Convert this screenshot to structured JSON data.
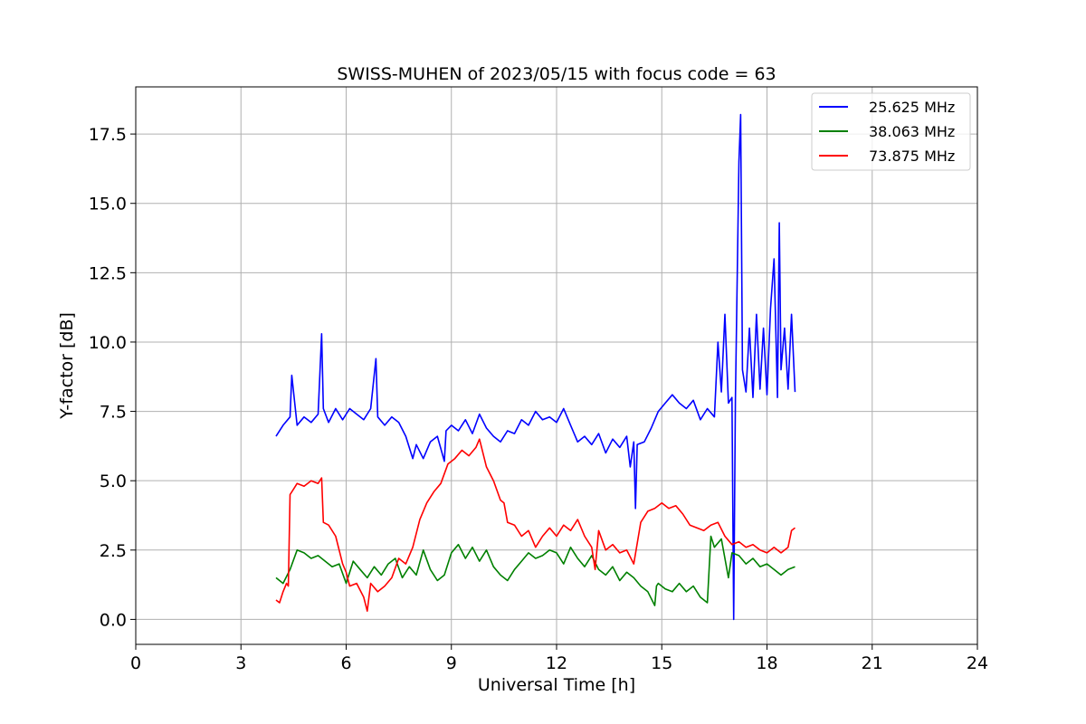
{
  "chart_data": {
    "type": "line",
    "title": "SWISS-MUHEN of 2023/05/15 with focus code = 63",
    "xlabel": "Universal Time [h]",
    "ylabel": "Y-factor [dB]",
    "xlim": [
      0,
      24
    ],
    "ylim": [
      -0.9,
      19.2
    ],
    "xticks": [
      0,
      3,
      6,
      9,
      12,
      15,
      18,
      21,
      24
    ],
    "xtick_labels": [
      "0",
      "3",
      "6",
      "9",
      "12",
      "15",
      "18",
      "21",
      "24"
    ],
    "yticks": [
      0.0,
      2.5,
      5.0,
      7.5,
      10.0,
      12.5,
      15.0,
      17.5
    ],
    "ytick_labels": [
      "0.0",
      "2.5",
      "5.0",
      "7.5",
      "10.0",
      "12.5",
      "15.0",
      "17.5"
    ],
    "grid": true,
    "legend_position": "top-right",
    "series": [
      {
        "name": "25.625 MHz",
        "color": "#0000ff",
        "x": [
          4.0,
          4.2,
          4.4,
          4.45,
          4.6,
          4.8,
          5.0,
          5.2,
          5.3,
          5.35,
          5.5,
          5.7,
          5.9,
          6.1,
          6.3,
          6.5,
          6.7,
          6.85,
          6.9,
          7.1,
          7.3,
          7.5,
          7.7,
          7.9,
          8.0,
          8.2,
          8.4,
          8.6,
          8.8,
          8.85,
          9.0,
          9.2,
          9.4,
          9.6,
          9.8,
          10.0,
          10.2,
          10.4,
          10.6,
          10.8,
          11.0,
          11.2,
          11.4,
          11.6,
          11.8,
          12.0,
          12.2,
          12.4,
          12.6,
          12.8,
          13.0,
          13.2,
          13.4,
          13.6,
          13.8,
          14.0,
          14.1,
          14.2,
          14.25,
          14.3,
          14.5,
          14.7,
          14.9,
          15.1,
          15.3,
          15.5,
          15.7,
          15.9,
          16.1,
          16.3,
          16.5,
          16.6,
          16.7,
          16.8,
          16.9,
          17.0,
          17.05,
          17.1,
          17.2,
          17.25,
          17.3,
          17.4,
          17.5,
          17.6,
          17.7,
          17.8,
          17.9,
          18.0,
          18.1,
          18.2,
          18.3,
          18.35,
          18.4,
          18.5,
          18.6,
          18.7,
          18.8
        ],
        "y": [
          6.6,
          7.0,
          7.3,
          8.8,
          7.0,
          7.3,
          7.1,
          7.4,
          10.3,
          7.6,
          7.1,
          7.6,
          7.2,
          7.6,
          7.4,
          7.2,
          7.6,
          9.4,
          7.3,
          7.0,
          7.3,
          7.1,
          6.6,
          5.8,
          6.3,
          5.8,
          6.4,
          6.6,
          5.7,
          6.8,
          7.0,
          6.8,
          7.2,
          6.7,
          7.4,
          6.9,
          6.6,
          6.4,
          6.8,
          6.7,
          7.2,
          7.0,
          7.5,
          7.2,
          7.3,
          7.1,
          7.6,
          7.0,
          6.4,
          6.6,
          6.3,
          6.7,
          6.0,
          6.5,
          6.2,
          6.6,
          5.5,
          6.4,
          4.0,
          6.3,
          6.4,
          6.9,
          7.5,
          7.8,
          8.1,
          7.8,
          7.6,
          7.9,
          7.2,
          7.6,
          7.3,
          10.0,
          8.2,
          11.0,
          7.8,
          8.0,
          0.0,
          7.9,
          16.5,
          18.2,
          9.0,
          8.2,
          10.5,
          8.0,
          11.0,
          8.3,
          10.5,
          8.1,
          11.2,
          13.0,
          8.0,
          14.3,
          9.0,
          10.5,
          8.3,
          11.0,
          8.2
        ]
      },
      {
        "name": "38.063 MHz",
        "color": "#008000",
        "x": [
          4.0,
          4.2,
          4.4,
          4.6,
          4.8,
          5.0,
          5.2,
          5.4,
          5.6,
          5.8,
          6.0,
          6.2,
          6.4,
          6.6,
          6.8,
          7.0,
          7.2,
          7.4,
          7.6,
          7.8,
          8.0,
          8.2,
          8.4,
          8.6,
          8.8,
          9.0,
          9.2,
          9.4,
          9.6,
          9.8,
          10.0,
          10.2,
          10.4,
          10.6,
          10.8,
          11.0,
          11.2,
          11.4,
          11.6,
          11.8,
          12.0,
          12.2,
          12.4,
          12.6,
          12.8,
          13.0,
          13.2,
          13.4,
          13.6,
          13.8,
          14.0,
          14.2,
          14.4,
          14.6,
          14.8,
          14.85,
          14.9,
          15.1,
          15.3,
          15.5,
          15.7,
          15.9,
          16.1,
          16.3,
          16.4,
          16.5,
          16.7,
          16.9,
          17.0,
          17.2,
          17.4,
          17.6,
          17.8,
          18.0,
          18.2,
          18.4,
          18.6,
          18.8
        ],
        "y": [
          1.5,
          1.3,
          1.8,
          2.5,
          2.4,
          2.2,
          2.3,
          2.1,
          1.9,
          2.0,
          1.3,
          2.1,
          1.8,
          1.5,
          1.9,
          1.6,
          2.0,
          2.2,
          1.5,
          1.9,
          1.6,
          2.5,
          1.8,
          1.4,
          1.6,
          2.4,
          2.7,
          2.2,
          2.6,
          2.1,
          2.5,
          1.9,
          1.6,
          1.4,
          1.8,
          2.1,
          2.4,
          2.2,
          2.3,
          2.5,
          2.4,
          2.0,
          2.6,
          2.2,
          1.9,
          2.3,
          1.8,
          1.6,
          1.9,
          1.4,
          1.7,
          1.5,
          1.2,
          1.0,
          0.5,
          1.2,
          1.3,
          1.1,
          1.0,
          1.3,
          1.0,
          1.2,
          0.8,
          0.6,
          3.0,
          2.6,
          2.9,
          1.5,
          2.4,
          2.3,
          2.0,
          2.2,
          1.9,
          2.0,
          1.8,
          1.6,
          1.8,
          1.9
        ]
      },
      {
        "name": "73.875 MHz",
        "color": "#ff0000",
        "x": [
          4.0,
          4.1,
          4.2,
          4.3,
          4.35,
          4.4,
          4.5,
          4.6,
          4.8,
          5.0,
          5.2,
          5.3,
          5.35,
          5.5,
          5.7,
          5.9,
          6.0,
          6.1,
          6.3,
          6.5,
          6.6,
          6.7,
          6.9,
          7.1,
          7.3,
          7.5,
          7.7,
          7.9,
          8.1,
          8.3,
          8.5,
          8.7,
          8.9,
          9.1,
          9.3,
          9.5,
          9.7,
          9.8,
          10.0,
          10.2,
          10.4,
          10.5,
          10.6,
          10.8,
          11.0,
          11.2,
          11.4,
          11.6,
          11.8,
          12.0,
          12.2,
          12.4,
          12.6,
          12.8,
          13.0,
          13.1,
          13.2,
          13.4,
          13.6,
          13.8,
          14.0,
          14.2,
          14.4,
          14.6,
          14.8,
          15.0,
          15.2,
          15.4,
          15.6,
          15.8,
          16.0,
          16.2,
          16.4,
          16.6,
          16.8,
          17.0,
          17.2,
          17.4,
          17.6,
          17.8,
          18.0,
          18.2,
          18.4,
          18.6,
          18.7,
          18.8
        ],
        "y": [
          0.7,
          0.6,
          1.0,
          1.3,
          1.2,
          4.5,
          4.7,
          4.9,
          4.8,
          5.0,
          4.9,
          5.1,
          3.5,
          3.4,
          3.0,
          2.0,
          1.7,
          1.2,
          1.3,
          0.8,
          0.3,
          1.3,
          1.0,
          1.2,
          1.5,
          2.2,
          2.0,
          2.6,
          3.6,
          4.2,
          4.6,
          4.9,
          5.6,
          5.8,
          6.1,
          5.9,
          6.2,
          6.5,
          5.5,
          5.0,
          4.3,
          4.2,
          3.5,
          3.4,
          3.0,
          3.2,
          2.6,
          3.0,
          3.3,
          3.0,
          3.4,
          3.2,
          3.6,
          3.0,
          2.6,
          1.8,
          3.2,
          2.5,
          2.7,
          2.4,
          2.5,
          2.0,
          3.5,
          3.9,
          4.0,
          4.2,
          4.0,
          4.1,
          3.8,
          3.4,
          3.3,
          3.2,
          3.4,
          3.5,
          3.0,
          2.7,
          2.8,
          2.6,
          2.7,
          2.5,
          2.4,
          2.6,
          2.4,
          2.6,
          3.2,
          3.3
        ]
      }
    ]
  }
}
